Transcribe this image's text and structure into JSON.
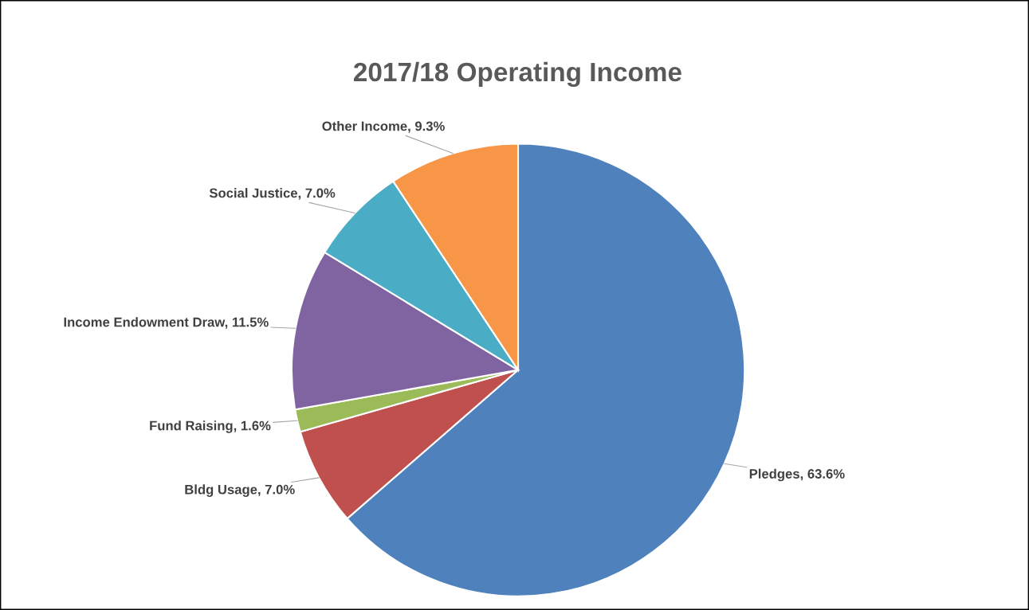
{
  "chart_data": {
    "type": "pie",
    "title": "2017/18 Operating Income",
    "categories": [
      "Pledges",
      "Bldg Usage",
      "Fund Raising",
      "Income Endowment Draw",
      "Social Justice",
      "Other Income"
    ],
    "values": [
      63.6,
      7.0,
      1.6,
      11.5,
      7.0,
      9.3
    ],
    "colors": [
      "#4f81bd",
      "#c0504d",
      "#9bbb59",
      "#8064a2",
      "#4bacc6",
      "#f79646"
    ],
    "value_labels": [
      "63.6%",
      "7.0%",
      "1.6%",
      "11.5%",
      "7.0%",
      "9.3%"
    ],
    "legend": false
  }
}
